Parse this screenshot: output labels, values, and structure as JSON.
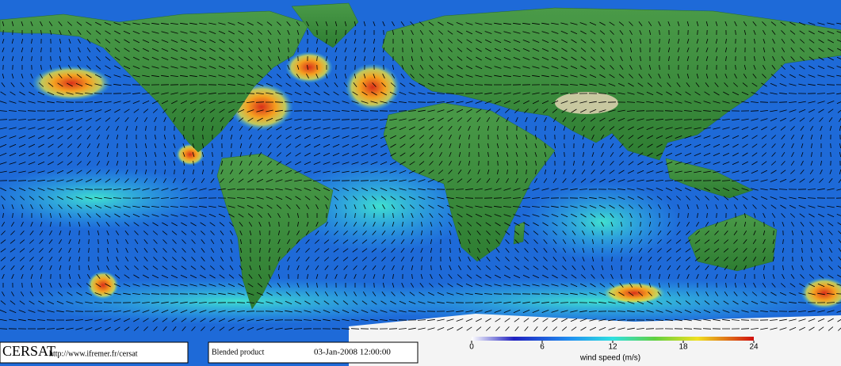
{
  "footer": {
    "logo": "CERSAT",
    "url": "http://www.ifremer.fr/cersat",
    "product": "Blended product",
    "date": "03-Jan-2008 12:00:00"
  },
  "colorbar": {
    "label": "wind speed (m/s)",
    "lim": [
      0,
      24
    ],
    "ticks": [
      0,
      6,
      12,
      18,
      24
    ]
  }
}
